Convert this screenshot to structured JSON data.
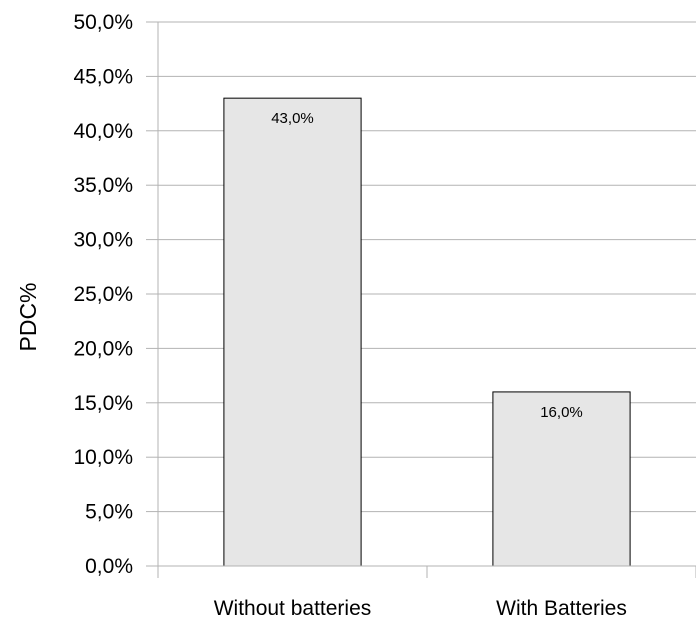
{
  "chart_data": {
    "type": "bar",
    "categories": [
      "Without batteries",
      "With Batteries"
    ],
    "values": [
      43.0,
      16.0
    ],
    "data_labels": [
      "43,0%",
      "16,0%"
    ],
    "title": "",
    "xlabel": "",
    "ylabel": "PDC%",
    "ylim": [
      0,
      50
    ],
    "ytick_step": 5,
    "yticks": [
      "0,0%",
      "5,0%",
      "10,0%",
      "15,0%",
      "20,0%",
      "25,0%",
      "30,0%",
      "35,0%",
      "40,0%",
      "45,0%",
      "50,0%"
    ],
    "grid": true,
    "legend": "none",
    "bar_color": "#e6e6e6",
    "bar_edge_color": "#000000",
    "grid_color": "#b3b3b3"
  }
}
